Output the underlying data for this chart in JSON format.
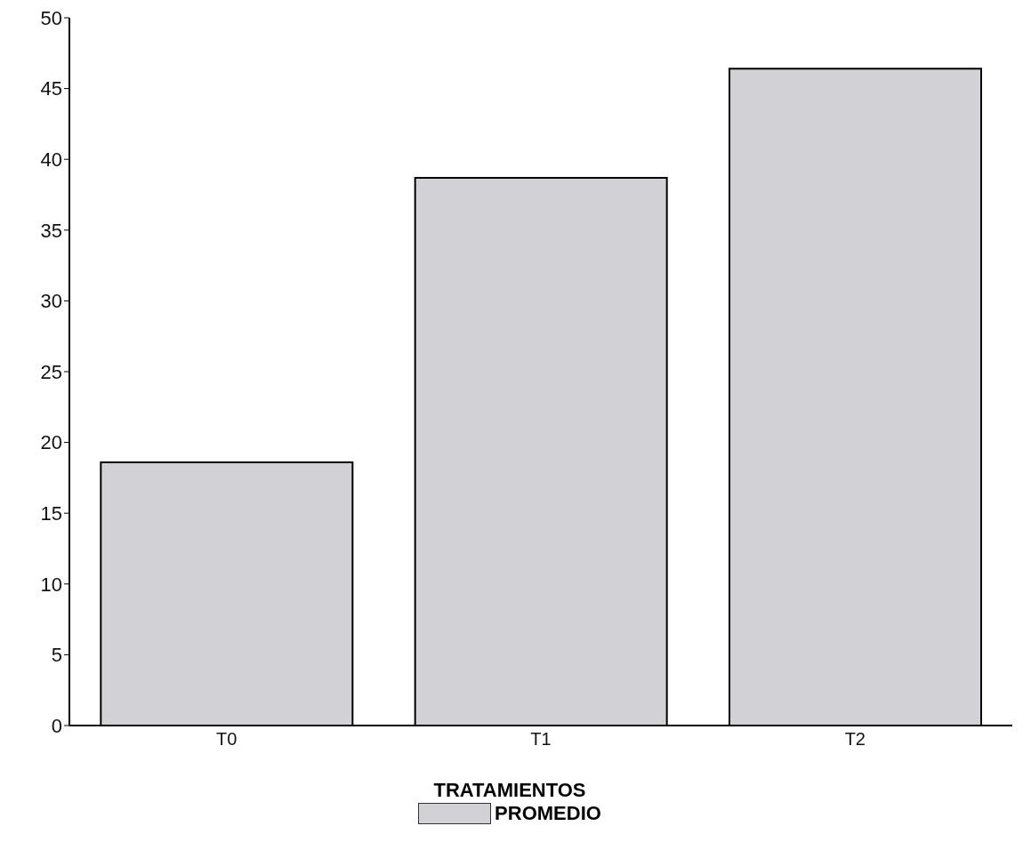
{
  "chart_data": {
    "type": "bar",
    "xlabel": "TRATAMIENTOS",
    "categories": [
      "T0",
      "T1",
      "T2"
    ],
    "series": [
      {
        "name": "PROMEDIO",
        "color": "#d2d2d6",
        "values": [
          18.6,
          38.7,
          46.4
        ]
      }
    ],
    "ylim": [
      0,
      50
    ],
    "yticks": [
      0,
      5,
      10,
      15,
      20,
      25,
      30,
      35,
      40,
      45,
      50
    ],
    "grid": false,
    "legend": "bottom"
  }
}
